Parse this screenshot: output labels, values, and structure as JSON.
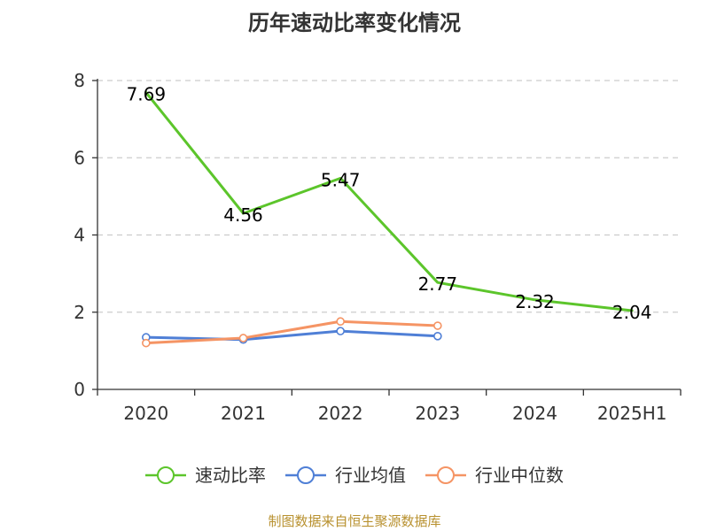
{
  "title": "历年速动比率变化情况",
  "source": "制图数据来自恒生聚源数据库",
  "colors": {
    "axis": "#333333",
    "grid": "#cccccc"
  },
  "chart_data": {
    "type": "line",
    "categories": [
      "2020",
      "2021",
      "2022",
      "2023",
      "2024",
      "2025H1"
    ],
    "ylim": [
      0,
      8
    ],
    "yticks": [
      0,
      2,
      4,
      6,
      8
    ],
    "grid": "horizontal dashed",
    "legend_position": "bottom",
    "series": [
      {
        "name": "速动比率",
        "color": "#5cc52b",
        "values": [
          7.69,
          4.56,
          5.47,
          2.77,
          2.32,
          2.04
        ],
        "labels": [
          "7.69",
          "4.56",
          "5.47",
          "2.77",
          "2.32",
          "2.04"
        ],
        "show_markers": false,
        "show_labels": true
      },
      {
        "name": "行业均值",
        "color": "#4f7fd6",
        "values": [
          1.35,
          1.29,
          1.51,
          1.38,
          null,
          null
        ],
        "show_markers": true,
        "show_labels": false
      },
      {
        "name": "行业中位数",
        "color": "#f59464",
        "values": [
          1.2,
          1.33,
          1.76,
          1.65,
          null,
          null
        ],
        "show_markers": true,
        "show_labels": false
      }
    ]
  }
}
